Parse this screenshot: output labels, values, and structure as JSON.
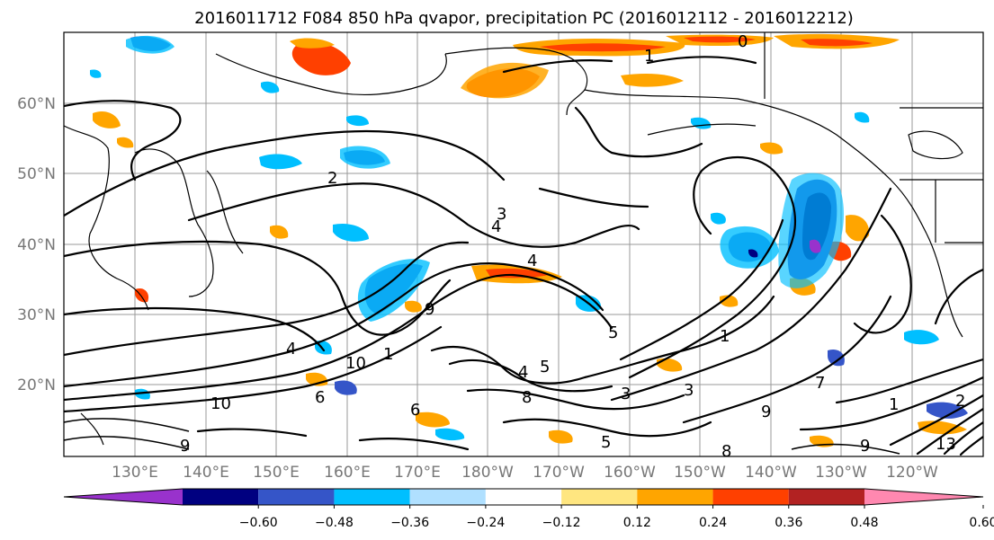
{
  "title": "2016011712 F084 850 hPa qvapor, precipitation PC (2016012112 - 2016012212)",
  "colors": {
    "purple": "#9932cc",
    "navy": "#000080",
    "blue": "#3555c8",
    "deepskyblue": "#00bfff",
    "lightblue": "#b0e0ff",
    "white": "#ffffff",
    "lightyellow": "#ffe680",
    "orange": "#ffa500",
    "orangered": "#ff4000",
    "firebrick": "#b22222",
    "pink": "#ff88b0"
  },
  "map": {
    "lat_labels": [
      "60°N",
      "50°N",
      "40°N",
      "30°N",
      "20°N"
    ],
    "lon_labels": [
      "130°E",
      "140°E",
      "150°E",
      "160°E",
      "170°E",
      "180°W",
      "170°W",
      "160°W",
      "150°W",
      "140°W",
      "130°W",
      "120°W"
    ],
    "contour_labels": [
      "1",
      "0",
      "2",
      "3",
      "4",
      "4",
      "5",
      "9",
      "10",
      "4",
      "6",
      "1",
      "5",
      "9",
      "10",
      "6",
      "8",
      "9",
      "8",
      "5",
      "1",
      "3",
      "9",
      "1",
      "2",
      "13",
      "4",
      "3",
      "7"
    ]
  },
  "colorbar": {
    "tick_labels": [
      "−0.60",
      "−0.48",
      "−0.36",
      "−0.24",
      "−0.12",
      "0.12",
      "0.24",
      "0.36",
      "0.48",
      "0.60"
    ]
  }
}
